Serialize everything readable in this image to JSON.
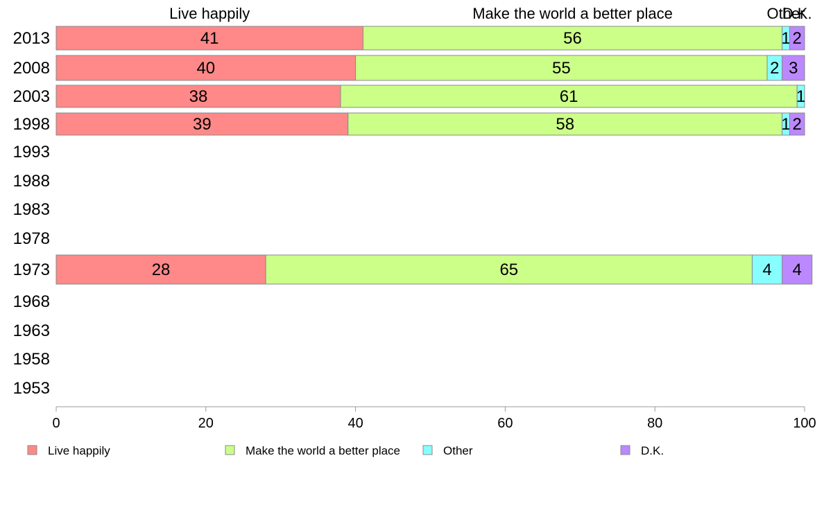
{
  "chart_data": {
    "type": "bar",
    "orientation": "horizontal",
    "stacked": true,
    "categories": [
      "2013",
      "2008",
      "2003",
      "1998",
      "1993",
      "1988",
      "1983",
      "1978",
      "1973",
      "1968",
      "1963",
      "1958",
      "1953"
    ],
    "series": [
      {
        "name": "Live happily",
        "color": "#ff8888",
        "values": [
          41,
          40,
          38,
          39,
          null,
          null,
          null,
          null,
          28,
          null,
          null,
          null,
          null
        ]
      },
      {
        "name": "Make the world a better place",
        "color": "#ccff88",
        "values": [
          56,
          55,
          61,
          58,
          null,
          null,
          null,
          null,
          65,
          null,
          null,
          null,
          null
        ]
      },
      {
        "name": "Other",
        "color": "#88ffff",
        "values": [
          1,
          2,
          1,
          1,
          null,
          null,
          null,
          null,
          4,
          null,
          null,
          null,
          null
        ]
      },
      {
        "name": "D.K.",
        "color": "#bb88ff",
        "values": [
          2,
          3,
          0,
          2,
          null,
          null,
          null,
          null,
          4,
          null,
          null,
          null,
          null
        ]
      }
    ],
    "top_labels": [
      "Live happily",
      "Make the world a better place",
      "Other",
      "D.K."
    ],
    "xlim": [
      0,
      100
    ],
    "xticks": [
      0,
      20,
      40,
      60,
      80,
      100
    ],
    "title": "",
    "xlabel": "",
    "ylabel": "",
    "grid": false,
    "legend_position": "bottom"
  }
}
